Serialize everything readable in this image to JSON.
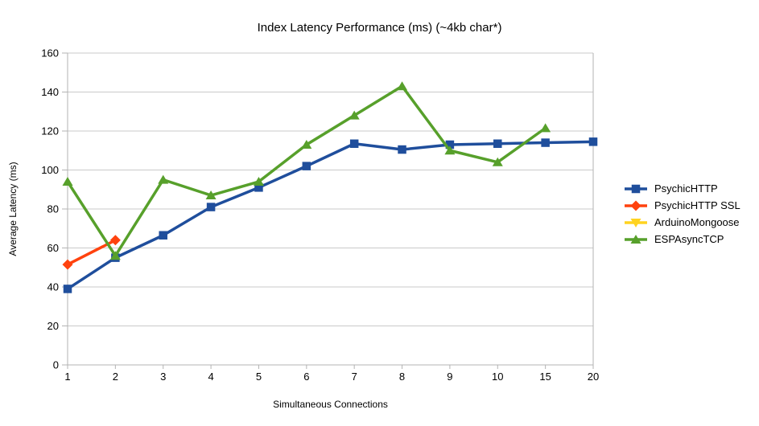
{
  "chart_data": {
    "type": "line",
    "title": "Index Latency Performance (ms) (~4kb char*)",
    "xlabel": "Simultaneous Connections",
    "ylabel": "Average Latency (ms)",
    "categories": [
      "1",
      "2",
      "3",
      "4",
      "5",
      "6",
      "7",
      "8",
      "9",
      "10",
      "15",
      "20"
    ],
    "ylim": [
      0,
      160
    ],
    "ytick_interval": 20,
    "ytick_labels": [
      "0",
      "20",
      "40",
      "60",
      "80",
      "100",
      "120",
      "140",
      "160"
    ],
    "grid": true,
    "legend_position": "right",
    "colors": {
      "background": "#FFFFFF",
      "grid": "#C9C9C9",
      "axis": "#B3B3B3",
      "text": "#000000"
    },
    "series": [
      {
        "name": "PsychicHTTP",
        "color": "#1F4E9C",
        "marker": "square",
        "values": [
          39,
          55,
          66.5,
          81,
          91,
          102,
          113.5,
          110.5,
          113,
          113.5,
          114,
          114.5
        ]
      },
      {
        "name": "PsychicHTTP SSL",
        "color": "#FF420E",
        "marker": "diamond",
        "values": [
          51.5,
          64,
          null,
          null,
          null,
          null,
          null,
          null,
          null,
          null,
          null,
          null
        ]
      },
      {
        "name": "ArduinoMongoose",
        "color": "#FFD320",
        "marker": "triangle-down",
        "values": [
          null,
          null,
          null,
          null,
          null,
          null,
          null,
          null,
          null,
          null,
          null,
          null
        ]
      },
      {
        "name": "ESPAsyncTCP",
        "color": "#57A02B",
        "marker": "triangle-up",
        "values": [
          94,
          56,
          95,
          87,
          94,
          113,
          128,
          143,
          110,
          104,
          121.5,
          null
        ]
      }
    ]
  }
}
